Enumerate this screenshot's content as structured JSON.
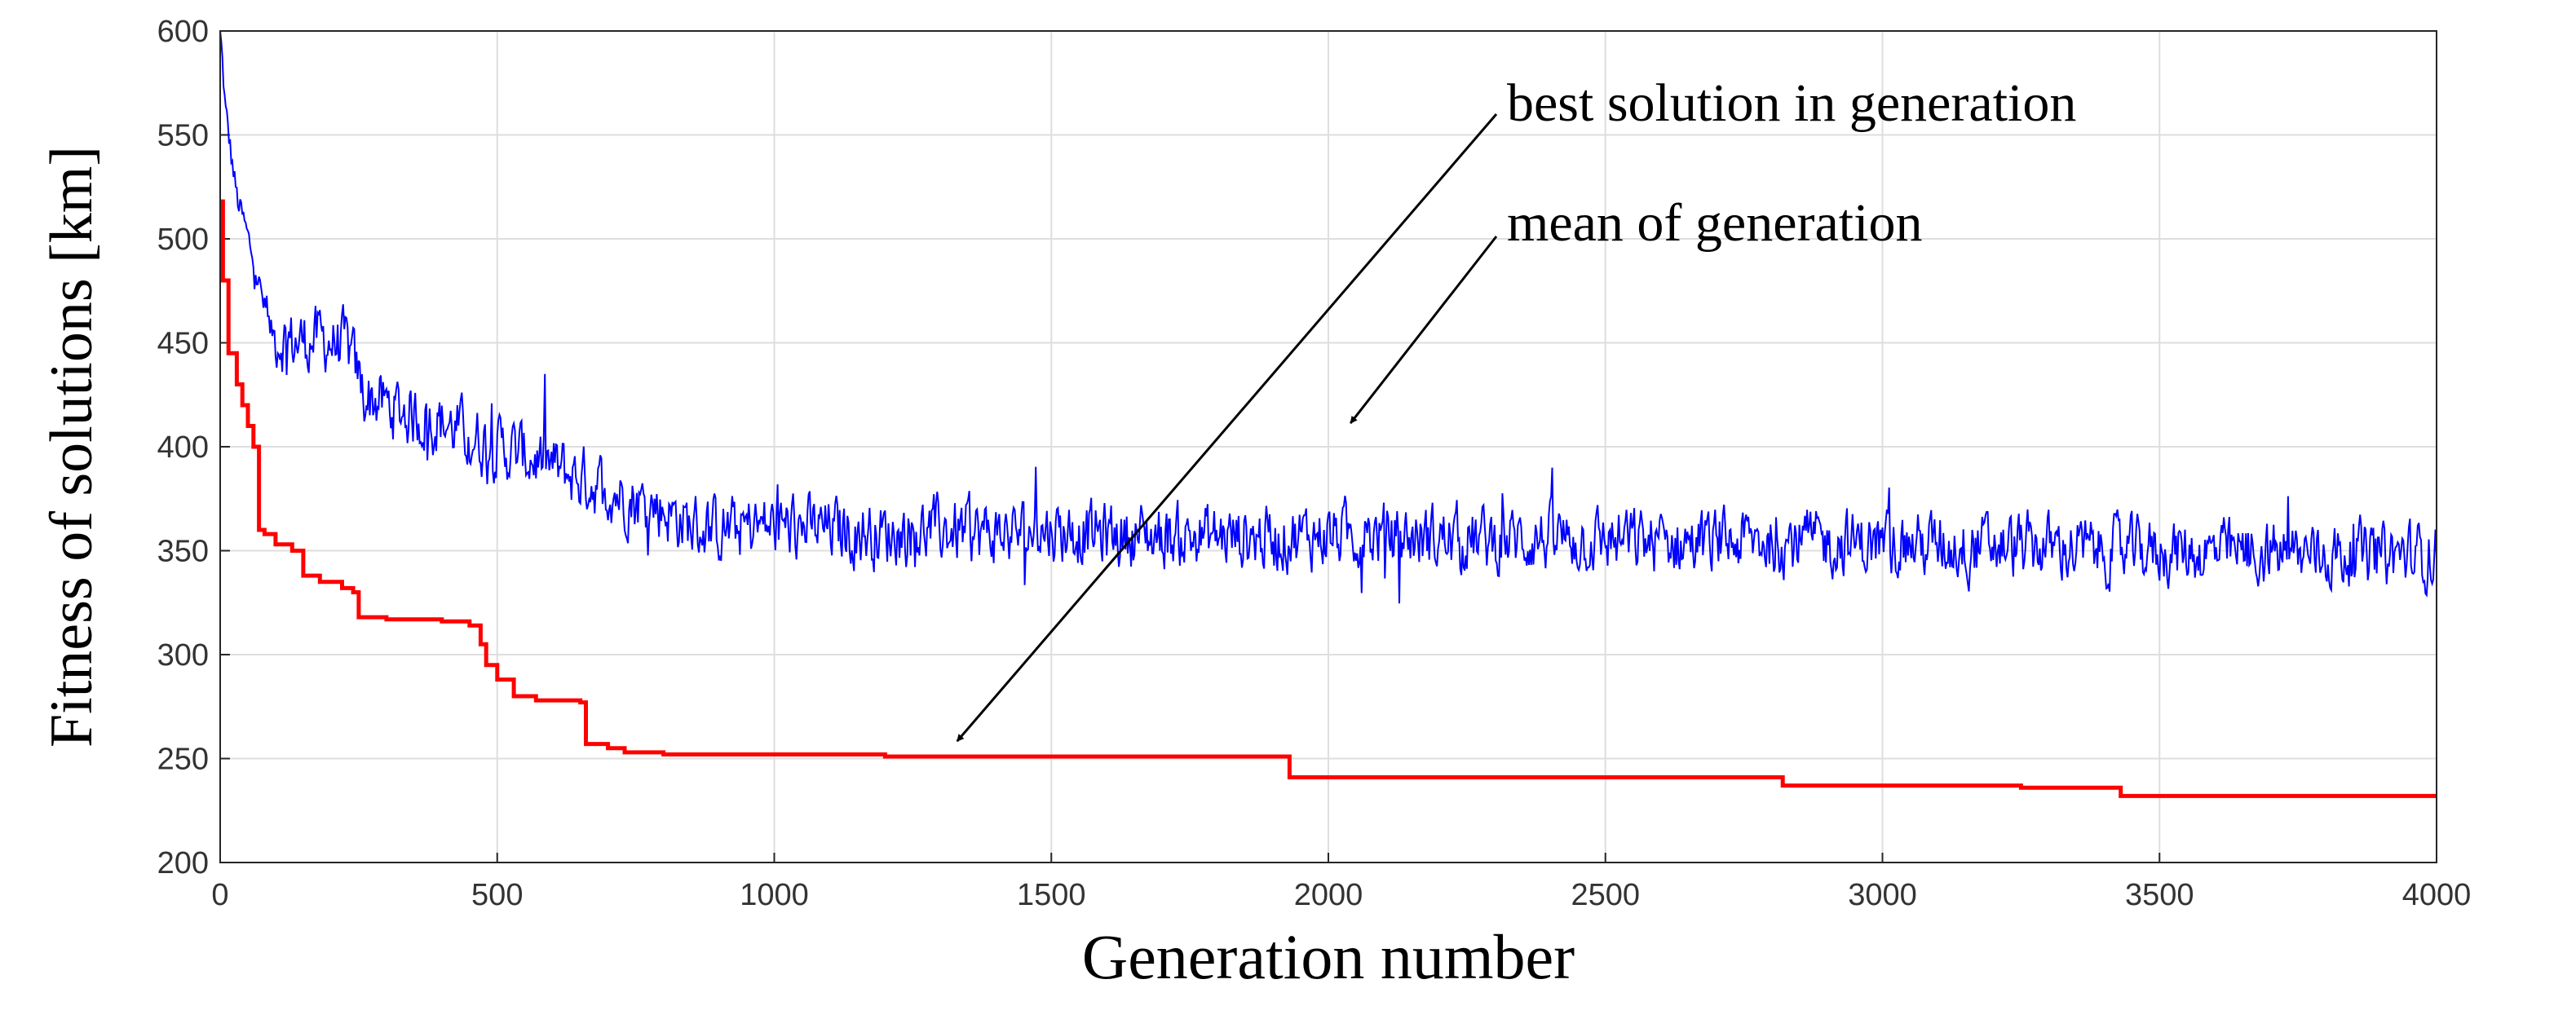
{
  "chart_data": {
    "type": "line",
    "title": "",
    "xlabel": "Generation number",
    "ylabel": "Fitness of solutions [km]",
    "xlim": [
      0,
      4000
    ],
    "ylim": [
      200,
      600
    ],
    "grid": true,
    "x_ticks": [
      "0",
      "500",
      "1000",
      "1500",
      "2000",
      "2500",
      "3000",
      "3500",
      "4000"
    ],
    "y_ticks": [
      "200",
      "250",
      "300",
      "350",
      "400",
      "450",
      "500",
      "550",
      "600"
    ],
    "series": [
      {
        "name": "mean of generation",
        "color": "#0000ff",
        "style": "noisy",
        "x": [
          0,
          10,
          30,
          60,
          90,
          130,
          180,
          230,
          260,
          300,
          350,
          400,
          450,
          500,
          560,
          620,
          680,
          740,
          800,
          850,
          900,
          1000,
          1100,
          1200,
          1300,
          1400,
          1500,
          1600,
          1700,
          1800,
          1900,
          2000,
          2100,
          2200,
          2300,
          2400,
          2500,
          2600,
          2700,
          2800,
          2900,
          3000,
          3100,
          3200,
          3300,
          3400,
          3500,
          3600,
          3700,
          3800,
          3900,
          4000
        ],
        "y": [
          600,
          560,
          520,
          490,
          455,
          450,
          452,
          448,
          425,
          420,
          415,
          412,
          405,
          400,
          395,
          388,
          382,
          375,
          370,
          362,
          360,
          362,
          360,
          358,
          360,
          358,
          360,
          358,
          357,
          357,
          356,
          358,
          357,
          356,
          355,
          356,
          355,
          354,
          354,
          355,
          354,
          353,
          353,
          352,
          352,
          350,
          350,
          349,
          349,
          348,
          348,
          348
        ],
        "noise_amplitude": 24
      },
      {
        "name": "best solution in generation",
        "color": "#ff0000",
        "style": "step",
        "x": [
          0,
          5,
          15,
          30,
          40,
          50,
          60,
          70,
          80,
          100,
          130,
          150,
          180,
          220,
          240,
          250,
          300,
          400,
          450,
          470,
          480,
          500,
          530,
          570,
          650,
          660,
          700,
          730,
          800,
          1200,
          1930,
          2820,
          3250,
          3430,
          4000
        ],
        "y": [
          518,
          480,
          445,
          430,
          420,
          410,
          400,
          360,
          358,
          353,
          350,
          338,
          335,
          332,
          330,
          318,
          317,
          316,
          314,
          305,
          295,
          288,
          280,
          278,
          277,
          257,
          255,
          253,
          252,
          251,
          241,
          237,
          236,
          232,
          232
        ]
      }
    ],
    "annotations": [
      {
        "text": "best solution in generation",
        "target_x": 1330,
        "target_y": 256
      },
      {
        "text": "mean of generation",
        "target_x": 2040,
        "target_y": 409
      }
    ]
  }
}
